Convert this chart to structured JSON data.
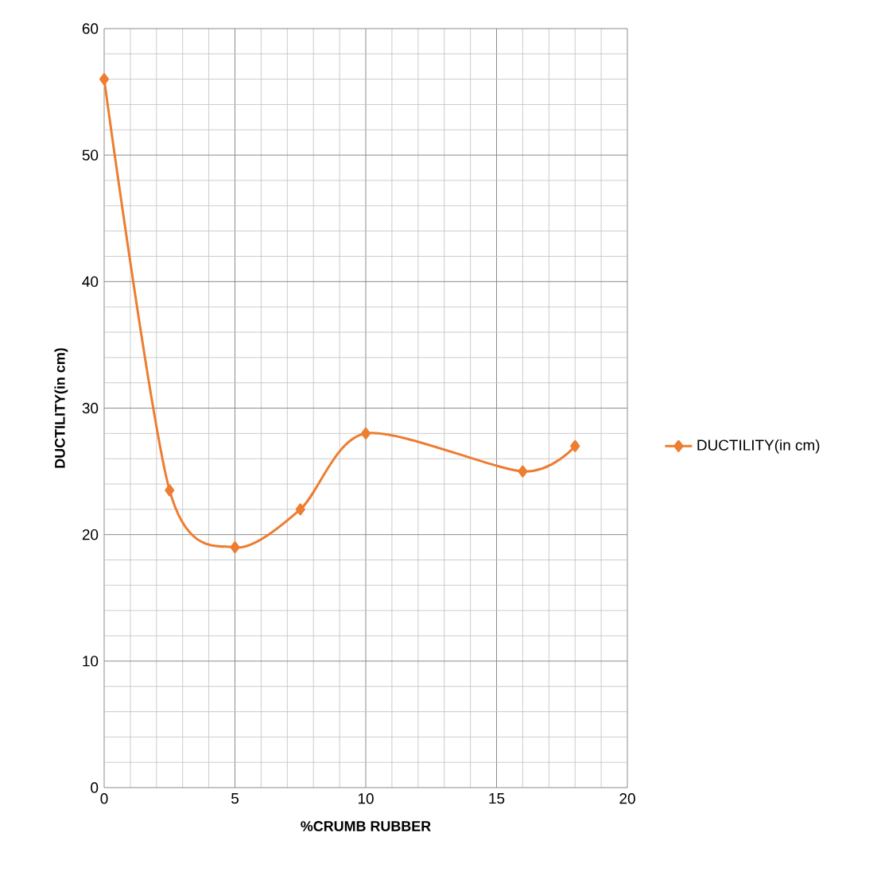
{
  "chart_data": {
    "type": "line",
    "xlabel": "%CRUMB RUBBER",
    "ylabel": "DUCTILITY(in cm)",
    "x": [
      0,
      2.5,
      5,
      7.5,
      10,
      16,
      18
    ],
    "series": [
      {
        "name": "DUCTILITY(in cm)",
        "color": "#ed7d31",
        "values": [
          56,
          23.5,
          19,
          22,
          28,
          25,
          27
        ]
      }
    ],
    "xlim": [
      0,
      20
    ],
    "ylim": [
      0,
      60
    ],
    "xticks": [
      0,
      5,
      10,
      15,
      20
    ],
    "yticks": [
      0,
      10,
      20,
      30,
      40,
      50,
      60
    ],
    "grid": true,
    "legend": "right",
    "marker": "diamond",
    "line_style": "solid"
  }
}
